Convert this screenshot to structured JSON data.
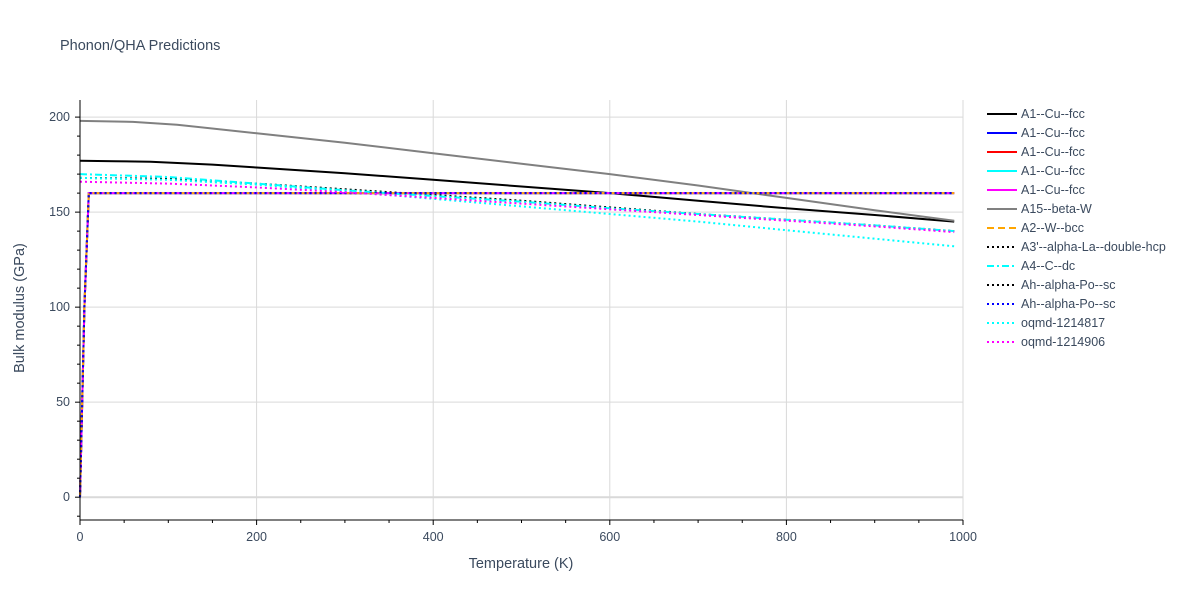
{
  "chart_data": {
    "type": "line",
    "title": "Phonon/QHA Predictions",
    "xlabel": "Temperature (K)",
    "ylabel": "Bulk modulus (GPa)",
    "xlim": [
      0,
      1000
    ],
    "ylim": [
      -12,
      209
    ],
    "xticks": [
      0,
      200,
      400,
      600,
      800,
      1000
    ],
    "yticks": [
      0,
      50,
      100,
      150,
      200
    ],
    "grid": true,
    "legend_position": "right",
    "series": [
      {
        "name": "A1--Cu--fcc",
        "color": "#000000",
        "dash": "solid",
        "x": [
          0,
          40,
          80,
          150,
          200,
          300,
          400,
          500,
          600,
          700,
          800,
          900,
          990
        ],
        "y": [
          177,
          176.8,
          176.5,
          175,
          173.5,
          170.5,
          167,
          163.5,
          160,
          156,
          152,
          148.5,
          145
        ]
      },
      {
        "name": "A1--Cu--fcc",
        "color": "#0000ff",
        "dash": "solid",
        "x": [
          0,
          5,
          10,
          200,
          400,
          600,
          800,
          990
        ],
        "y": [
          0,
          100,
          160,
          160,
          160,
          160,
          160,
          160
        ]
      },
      {
        "name": "A1--Cu--fcc",
        "color": "#ff0000",
        "dash": "solid",
        "x": [
          0,
          5,
          10,
          200,
          400,
          600,
          800,
          990
        ],
        "y": [
          0,
          100,
          160,
          160,
          160,
          160,
          160,
          160
        ]
      },
      {
        "name": "A1--Cu--fcc",
        "color": "#00ffff",
        "dash": "solid",
        "x": [
          0,
          5,
          10,
          200,
          400,
          600,
          800,
          990
        ],
        "y": [
          0,
          100,
          160,
          160,
          160,
          160,
          160,
          160
        ]
      },
      {
        "name": "A1--Cu--fcc",
        "color": "#ff00ff",
        "dash": "solid",
        "x": [
          0,
          5,
          10,
          200,
          400,
          600,
          800,
          990
        ],
        "y": [
          0,
          100,
          160,
          160,
          160,
          160,
          160,
          160
        ]
      },
      {
        "name": "A15--beta-W",
        "color": "#808080",
        "dash": "solid",
        "x": [
          0,
          60,
          110,
          200,
          300,
          400,
          500,
          600,
          700,
          800,
          900,
          990
        ],
        "y": [
          198,
          197.5,
          196,
          191.5,
          186.5,
          181,
          175.5,
          170,
          164,
          157.5,
          151,
          145.5
        ]
      },
      {
        "name": "A2--W--bcc",
        "color": "#ffa500",
        "dash": "dash",
        "x": [
          0,
          5,
          10,
          200,
          400,
          600,
          800,
          990
        ],
        "y": [
          0,
          100,
          160,
          160,
          160,
          160,
          160,
          160
        ]
      },
      {
        "name": "A3'--alpha-La--double-hcp",
        "color": "#000000",
        "dash": "dot",
        "x": [
          0,
          100,
          200,
          300,
          400,
          500,
          600,
          700,
          800,
          900,
          990
        ],
        "y": [
          168,
          167.5,
          165,
          162,
          159,
          156,
          152.5,
          149,
          146,
          143,
          140
        ]
      },
      {
        "name": "A4--C--dc",
        "color": "#00ffff",
        "dash": "dashdot",
        "x": [
          0,
          100,
          200,
          300,
          400,
          500,
          600,
          700,
          800,
          900,
          990
        ],
        "y": [
          170,
          168.5,
          165,
          161.5,
          158.5,
          155.5,
          152,
          149,
          146,
          143,
          140
        ]
      },
      {
        "name": "Ah--alpha-Po--sc",
        "color": "#000000",
        "dash": "dot",
        "x": [
          0,
          5,
          10,
          200,
          400,
          600,
          800,
          990
        ],
        "y": [
          0,
          100,
          160,
          160,
          160,
          160,
          160,
          160
        ]
      },
      {
        "name": "Ah--alpha-Po--sc",
        "color": "#0000ff",
        "dash": "dot",
        "x": [
          0,
          5,
          10,
          200,
          400,
          600,
          800,
          990
        ],
        "y": [
          0,
          100,
          160,
          160,
          160,
          160,
          160,
          160
        ]
      },
      {
        "name": "oqmd-1214817",
        "color": "#00ffff",
        "dash": "dot",
        "x": [
          0,
          100,
          200,
          300,
          400,
          500,
          600,
          700,
          800,
          900,
          990
        ],
        "y": [
          168,
          167,
          164.5,
          161,
          157,
          153,
          149,
          145,
          140.5,
          136,
          132
        ]
      },
      {
        "name": "oqmd-1214906",
        "color": "#ff00ff",
        "dash": "dot",
        "x": [
          0,
          100,
          200,
          300,
          400,
          500,
          600,
          700,
          800,
          900,
          990
        ],
        "y": [
          166,
          165,
          163,
          160.5,
          157.5,
          154.5,
          151.5,
          148.5,
          145.5,
          142.5,
          139.5
        ]
      }
    ]
  }
}
